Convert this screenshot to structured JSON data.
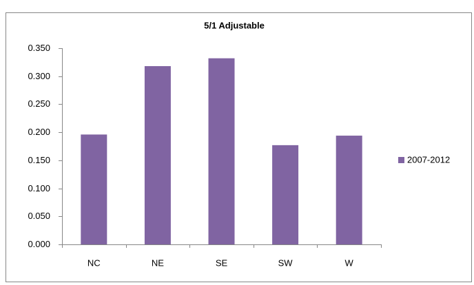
{
  "chart_data": {
    "type": "bar",
    "title": "5/1 Adjustable",
    "categories": [
      "NC",
      "NE",
      "SE",
      "SW",
      "W"
    ],
    "series": [
      {
        "name": "2007-2012",
        "color": "#8064a2",
        "values": [
          0.196,
          0.318,
          0.332,
          0.177,
          0.194
        ]
      }
    ],
    "ylim": [
      0,
      0.35
    ],
    "yticks": [
      {
        "value": 0,
        "label": "0.000"
      },
      {
        "value": 0.05,
        "label": "0.050"
      },
      {
        "value": 0.1,
        "label": "0.100"
      },
      {
        "value": 0.15,
        "label": "0.150"
      },
      {
        "value": 0.2,
        "label": "0.200"
      },
      {
        "value": 0.25,
        "label": "0.250"
      },
      {
        "value": 0.3,
        "label": "0.300"
      },
      {
        "value": 0.35,
        "label": "0.350"
      }
    ],
    "legend": "right"
  }
}
